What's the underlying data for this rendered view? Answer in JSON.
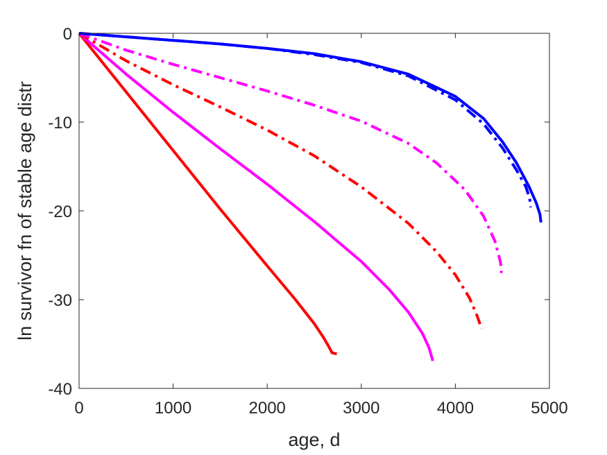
{
  "chart_data": {
    "type": "line",
    "title": "",
    "xlabel": "age, d",
    "ylabel": "ln survivor fn of stable age distr",
    "xlim": [
      0,
      5000
    ],
    "ylim": [
      -40,
      0
    ],
    "xticks": [
      0,
      1000,
      2000,
      3000,
      4000,
      5000
    ],
    "yticks": [
      0,
      -10,
      -20,
      -30,
      -40
    ],
    "xtick_labels": [
      "0",
      "1000",
      "2000",
      "3000",
      "4000",
      "5000"
    ],
    "ytick_labels": [
      "0",
      "-10",
      "-20",
      "-30",
      "-40"
    ],
    "grid": false,
    "legend": "none",
    "series": [
      {
        "color": "#ff0000",
        "style": "solid",
        "points": [
          [
            0,
            0
          ],
          [
            250,
            -3.3
          ],
          [
            500,
            -6.6
          ],
          [
            1000,
            -13.2
          ],
          [
            1500,
            -19.8
          ],
          [
            2000,
            -26.2
          ],
          [
            2300,
            -30.0
          ],
          [
            2500,
            -32.7
          ],
          [
            2600,
            -34.3
          ],
          [
            2650,
            -35.2
          ],
          [
            2690,
            -36.0
          ],
          [
            2740,
            -36.1
          ]
        ]
      },
      {
        "color": "#ff00ff",
        "style": "solid",
        "points": [
          [
            0,
            0
          ],
          [
            500,
            -4.6
          ],
          [
            1000,
            -8.9
          ],
          [
            1500,
            -13.0
          ],
          [
            2000,
            -17.0
          ],
          [
            2500,
            -21.2
          ],
          [
            3000,
            -25.7
          ],
          [
            3300,
            -28.9
          ],
          [
            3500,
            -31.4
          ],
          [
            3650,
            -33.8
          ],
          [
            3720,
            -35.4
          ],
          [
            3760,
            -36.9
          ]
        ]
      },
      {
        "color": "#ff0000",
        "style": "dashdot",
        "points": [
          [
            0,
            0
          ],
          [
            500,
            -3.1
          ],
          [
            1000,
            -5.8
          ],
          [
            1500,
            -8.3
          ],
          [
            2000,
            -10.9
          ],
          [
            2500,
            -13.8
          ],
          [
            3000,
            -17.3
          ],
          [
            3500,
            -21.4
          ],
          [
            3800,
            -24.6
          ],
          [
            4000,
            -27.2
          ],
          [
            4150,
            -29.8
          ],
          [
            4230,
            -31.8
          ],
          [
            4280,
            -33.3
          ]
        ]
      },
      {
        "color": "#ff00ff",
        "style": "dashdot",
        "points": [
          [
            0,
            0
          ],
          [
            500,
            -1.9
          ],
          [
            1000,
            -3.5
          ],
          [
            1500,
            -5.0
          ],
          [
            2000,
            -6.5
          ],
          [
            2500,
            -8.1
          ],
          [
            3000,
            -9.9
          ],
          [
            3500,
            -12.4
          ],
          [
            3800,
            -14.6
          ],
          [
            4100,
            -17.6
          ],
          [
            4300,
            -20.6
          ],
          [
            4420,
            -23.4
          ],
          [
            4480,
            -25.8
          ],
          [
            4490,
            -27.0
          ]
        ]
      },
      {
        "color": "#0000ff",
        "style": "dashdot",
        "points": [
          [
            0,
            0
          ],
          [
            500,
            -0.4
          ],
          [
            1000,
            -0.8
          ],
          [
            1500,
            -1.2
          ],
          [
            2000,
            -1.7
          ],
          [
            2500,
            -2.4
          ],
          [
            3000,
            -3.3
          ],
          [
            3500,
            -4.8
          ],
          [
            4000,
            -7.5
          ],
          [
            4300,
            -10.2
          ],
          [
            4500,
            -12.9
          ],
          [
            4650,
            -15.4
          ],
          [
            4750,
            -17.3
          ],
          [
            4790,
            -18.6
          ],
          [
            4800,
            -19.6
          ]
        ]
      },
      {
        "color": "#0000ff",
        "style": "solid",
        "points": [
          [
            0,
            0
          ],
          [
            500,
            -0.4
          ],
          [
            1000,
            -0.8
          ],
          [
            1500,
            -1.2
          ],
          [
            2000,
            -1.7
          ],
          [
            2500,
            -2.3
          ],
          [
            3000,
            -3.2
          ],
          [
            3500,
            -4.6
          ],
          [
            4000,
            -7.1
          ],
          [
            4300,
            -9.6
          ],
          [
            4500,
            -12.2
          ],
          [
            4650,
            -14.6
          ],
          [
            4780,
            -17.2
          ],
          [
            4860,
            -19.1
          ],
          [
            4900,
            -20.4
          ],
          [
            4910,
            -21.3
          ]
        ]
      }
    ]
  }
}
